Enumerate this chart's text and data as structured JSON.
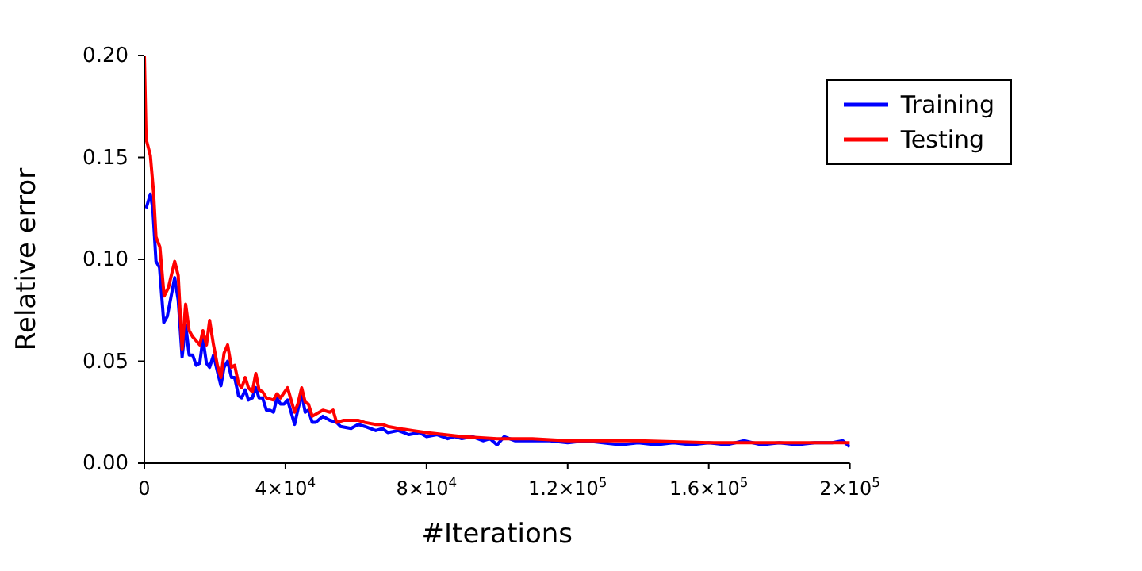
{
  "chart_data": {
    "type": "line",
    "xlabel": "#Iterations",
    "ylabel": "Relative error",
    "xlim": [
      0,
      200000
    ],
    "ylim": [
      0,
      0.2
    ],
    "xticks": [
      {
        "value": 0,
        "label": "0"
      },
      {
        "value": 40000,
        "label": "4×10$^{4}$"
      },
      {
        "value": 80000,
        "label": "8×10$^{4}$"
      },
      {
        "value": 120000,
        "label": "1.2×10$^{5}$"
      },
      {
        "value": 160000,
        "label": "1.6×10$^{5}$"
      },
      {
        "value": 200000,
        "label": "2×10$^{5}$"
      }
    ],
    "yticks": [
      {
        "value": 0,
        "label": "0.00"
      },
      {
        "value": 0.05,
        "label": "0.05"
      },
      {
        "value": 0.1,
        "label": "0.10"
      },
      {
        "value": 0.15,
        "label": "0.15"
      },
      {
        "value": 0.2,
        "label": "0.20"
      }
    ],
    "grid": false,
    "legend": "top right",
    "marker": "none",
    "line_style": "solid",
    "series": [
      {
        "name": "Training",
        "color": "#0000ff",
        "x": [
          500,
          1700,
          2400,
          3300,
          4300,
          5500,
          6500,
          8600,
          9600,
          10700,
          11700,
          12700,
          13700,
          14700,
          15700,
          16600,
          17600,
          18500,
          19600,
          20700,
          21700,
          22600,
          23600,
          24700,
          25600,
          26700,
          27600,
          28600,
          29500,
          30600,
          31600,
          32500,
          33500,
          34600,
          35600,
          36600,
          37600,
          38600,
          39600,
          40600,
          41600,
          42600,
          43500,
          44600,
          45600,
          46500,
          47600,
          48600,
          50600,
          52600,
          54500,
          55600,
          58600,
          60600,
          62500,
          65600,
          67500,
          69000,
          72000,
          75000,
          78000,
          80000,
          83000,
          86000,
          88000,
          90000,
          93000,
          96000,
          98000,
          100000,
          102000,
          105000,
          110000,
          115000,
          120000,
          125000,
          130000,
          135000,
          140000,
          145000,
          150000,
          155000,
          160000,
          165000,
          170000,
          175000,
          180000,
          185000,
          190000,
          195000,
          198000,
          200000
        ],
        "values": [
          0.125,
          0.132,
          0.125,
          0.099,
          0.096,
          0.069,
          0.072,
          0.091,
          0.08,
          0.052,
          0.068,
          0.053,
          0.053,
          0.048,
          0.049,
          0.061,
          0.049,
          0.047,
          0.053,
          0.045,
          0.038,
          0.047,
          0.05,
          0.042,
          0.042,
          0.033,
          0.032,
          0.036,
          0.031,
          0.032,
          0.037,
          0.032,
          0.032,
          0.026,
          0.026,
          0.025,
          0.032,
          0.029,
          0.029,
          0.031,
          0.025,
          0.019,
          0.026,
          0.034,
          0.025,
          0.026,
          0.02,
          0.02,
          0.023,
          0.021,
          0.02,
          0.018,
          0.017,
          0.019,
          0.018,
          0.016,
          0.017,
          0.015,
          0.016,
          0.014,
          0.015,
          0.013,
          0.014,
          0.012,
          0.013,
          0.012,
          0.013,
          0.011,
          0.012,
          0.009,
          0.013,
          0.011,
          0.011,
          0.011,
          0.01,
          0.011,
          0.01,
          0.009,
          0.01,
          0.009,
          0.01,
          0.009,
          0.01,
          0.009,
          0.011,
          0.009,
          0.01,
          0.009,
          0.01,
          0.01,
          0.011,
          0.008
        ]
      },
      {
        "name": "Testing",
        "color": "#ff0000",
        "x": [
          0,
          500,
          1700,
          2600,
          3300,
          4400,
          5600,
          6800,
          8600,
          9600,
          10700,
          11700,
          12700,
          13700,
          14700,
          15700,
          16600,
          17600,
          18500,
          19600,
          20700,
          21700,
          22600,
          23600,
          24700,
          25600,
          26700,
          27600,
          28600,
          29500,
          30600,
          31600,
          32500,
          33500,
          34600,
          36600,
          37600,
          38600,
          40600,
          41600,
          42600,
          43500,
          44600,
          45600,
          46500,
          47600,
          49600,
          50600,
          52600,
          53500,
          54500,
          56500,
          58600,
          60600,
          62500,
          65600,
          67500,
          69000,
          72000,
          76000,
          80000,
          85000,
          90000,
          100000,
          110000,
          120000,
          140000,
          160000,
          180000,
          200000
        ],
        "values": [
          0.2,
          0.159,
          0.151,
          0.133,
          0.111,
          0.106,
          0.082,
          0.086,
          0.099,
          0.092,
          0.056,
          0.078,
          0.065,
          0.062,
          0.06,
          0.058,
          0.065,
          0.058,
          0.07,
          0.058,
          0.048,
          0.042,
          0.054,
          0.058,
          0.047,
          0.048,
          0.039,
          0.037,
          0.042,
          0.037,
          0.035,
          0.044,
          0.036,
          0.035,
          0.032,
          0.031,
          0.034,
          0.032,
          0.037,
          0.031,
          0.025,
          0.029,
          0.037,
          0.03,
          0.029,
          0.023,
          0.025,
          0.026,
          0.025,
          0.026,
          0.02,
          0.021,
          0.021,
          0.021,
          0.02,
          0.019,
          0.019,
          0.018,
          0.017,
          0.016,
          0.015,
          0.014,
          0.013,
          0.012,
          0.012,
          0.011,
          0.011,
          0.01,
          0.01,
          0.01
        ]
      }
    ]
  }
}
